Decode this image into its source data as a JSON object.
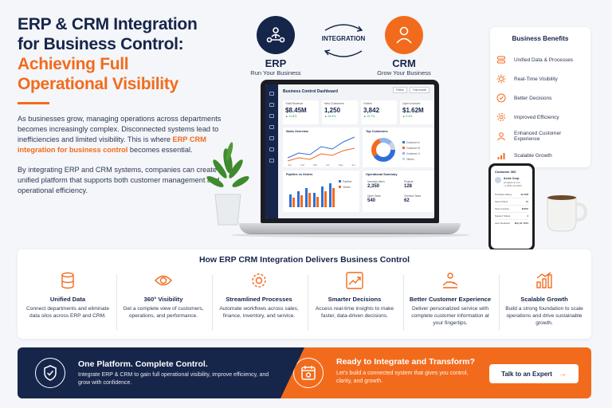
{
  "hero": {
    "title_line1": "ERP & CRM Integration",
    "title_line2": "for Business Control:",
    "accent_line1": "Achieving Full",
    "accent_line2": "Operational Visibility",
    "p1_before": "As businesses grow, managing operations across departments becomes increasingly complex. Disconnected systems lead to inefficiencies and limited visibility. This is where ",
    "p1_highlight": "ERP CRM integration for business control",
    "p1_after": " becomes essential.",
    "p2": "By integrating ERP and CRM systems, companies can create a unified platform that supports both customer management and operational efficiency."
  },
  "systems": {
    "erp_label": "ERP",
    "erp_sub": "Run Your Business",
    "crm_label": "CRM",
    "crm_sub": "Grow Your Business",
    "integration": "INTEGRATION"
  },
  "benefits": {
    "title": "Business Benefits",
    "items": [
      "Unified Data & Processes",
      "Real-Time Visibility",
      "Better Decisions",
      "Improved Efficiency",
      "Enhanced Customer Experience",
      "Scalable Growth"
    ]
  },
  "dashboard": {
    "title": "Business Control Dashboard",
    "filter1": "Filters",
    "filter2": "This month",
    "kpis": [
      {
        "label": "Total Revenue",
        "value": "$8.45M",
        "change": "▲ 12.8%"
      },
      {
        "label": "New Customers",
        "value": "1,250",
        "change": "▲ 18.3%"
      },
      {
        "label": "Orders",
        "value": "3,842",
        "change": "▲ 15.7%"
      },
      {
        "label": "Open Invoices",
        "value": "$1.62M",
        "change": "▲ 9.4%"
      }
    ],
    "sales_title": "Sales Overview",
    "sales_x": [
      "Jan",
      "Feb",
      "Mar",
      "Apr",
      "May",
      "Jun"
    ],
    "top_title": "Top Customers",
    "top_legend": [
      "Customer A",
      "Customer B",
      "Customer C",
      "Others"
    ],
    "pipeline_title": "Pipeline vs Orders",
    "pipeline_legend": [
      "Pipeline",
      "Orders"
    ],
    "ops_title": "Operational Summary",
    "ops": [
      {
        "label": "Inventory Items",
        "value": "2,350"
      },
      {
        "label": "Projects",
        "value": "128"
      },
      {
        "label": "Open Tasks",
        "value": "540"
      },
      {
        "label": "Overdue Tasks",
        "value": "62"
      }
    ],
    "colors": {
      "line1": "#2f6fd6",
      "line2": "#f26b1d",
      "donut": [
        "#2f6fd6",
        "#f26b1d",
        "#8fb5ef",
        "#c9d3e4"
      ]
    }
  },
  "phone": {
    "title": "Customer 360",
    "name": "Acme Corp.",
    "email": "john@acme.com",
    "phone": "+1 (555) 123-4567",
    "rows": [
      {
        "label": "Purchase History",
        "value": "$2.45M"
      },
      {
        "label": "Open Orders",
        "value": "12"
      },
      {
        "label": "Open Invoices",
        "value": "$320K"
      },
      {
        "label": "Support Tickets",
        "value": "3"
      },
      {
        "label": "Last Interaction",
        "value": "May 22, 2024"
      }
    ]
  },
  "features": {
    "heading": "How ERP CRM Integration Delivers Business Control",
    "items": [
      {
        "icon": "database-icon",
        "title": "Unified Data",
        "desc": "Connect departments and eliminate data silos across ERP and CRM."
      },
      {
        "icon": "eye-icon",
        "title": "360° Visibility",
        "desc": "Get a complete view of customers, operations, and performance."
      },
      {
        "icon": "gear-icon",
        "title": "Streamlined Processes",
        "desc": "Automate workflows across sales, finance, inventory, and service."
      },
      {
        "icon": "chart-up-icon",
        "title": "Smarter Decisions",
        "desc": "Access real-time insights to make faster, data-driven decisions."
      },
      {
        "icon": "handshake-icon",
        "title": "Better Customer Experience",
        "desc": "Deliver personalized service with complete customer information at your fingertips."
      },
      {
        "icon": "growth-bars-icon",
        "title": "Scalable Growth",
        "desc": "Build a strong foundation to scale operations and drive sustainable growth."
      }
    ]
  },
  "banner_left": {
    "title": "One Platform. Complete Control.",
    "desc": "Integrate ERP & CRM to gain full operational visibility, improve efficiency, and grow with confidence."
  },
  "banner_right": {
    "title": "Ready to Integrate and Transform?",
    "desc": "Let's build a connected system that gives you control, clarity, and growth.",
    "cta": "Talk to an Expert"
  },
  "brand": {
    "navy": "#16254a",
    "orange": "#f26b1d"
  }
}
